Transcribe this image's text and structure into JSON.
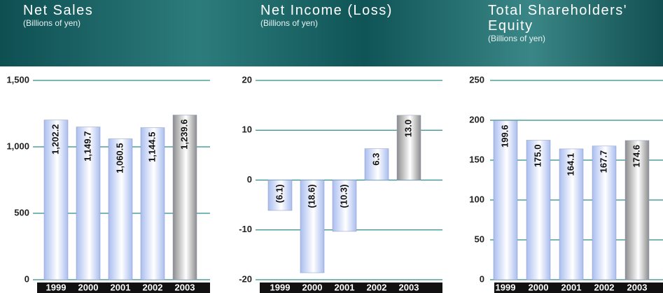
{
  "chart_data": [
    {
      "type": "bar",
      "title": "Net Sales",
      "subtitle": "(Billions of yen)",
      "categories": [
        "1999",
        "2000",
        "2001",
        "2002",
        "2003"
      ],
      "values": [
        1202.2,
        1149.7,
        1060.5,
        1144.5,
        1239.6
      ],
      "value_labels": [
        "1,202.2",
        "1,149.7",
        "1,060.5",
        "1,144.5",
        "1,239.6"
      ],
      "colors": [
        "#a9bdf0",
        "#a9bdf0",
        "#a9bdf0",
        "#a9bdf0",
        "#8c8c8c"
      ],
      "ylim": [
        0,
        1500
      ],
      "yticks": [
        0,
        500,
        {
          "value": 1000,
          "label": "1,000"
        },
        {
          "value": 1500,
          "label": "1,500"
        }
      ],
      "grid": true
    },
    {
      "type": "bar",
      "title": "Net Income (Loss)",
      "subtitle": "(Billions of yen)",
      "categories": [
        "1999",
        "2000",
        "2001",
        "2002",
        "2003"
      ],
      "values": [
        -6.1,
        -18.6,
        -10.3,
        6.3,
        13.0
      ],
      "value_labels": [
        "(6.1)",
        "(18.6)",
        "(10.3)",
        "6.3",
        "13.0"
      ],
      "colors": [
        "#a9bdf0",
        "#a9bdf0",
        "#a9bdf0",
        "#a9bdf0",
        "#8c8c8c"
      ],
      "ylim": [
        -20,
        20
      ],
      "yticks": [
        -20,
        -10,
        0,
        10,
        20
      ],
      "grid": true
    },
    {
      "type": "bar",
      "title": "Total Shareholders' Equity",
      "subtitle": "(Billions of yen)",
      "categories": [
        "1999",
        "2000",
        "2001",
        "2002",
        "2003"
      ],
      "values": [
        199.6,
        175.0,
        164.1,
        167.7,
        174.6
      ],
      "value_labels": [
        "199.6",
        "175.0",
        "164.1",
        "167.7",
        "174.6"
      ],
      "colors": [
        "#a9bdf0",
        "#a9bdf0",
        "#a9bdf0",
        "#a9bdf0",
        "#8c8c8c"
      ],
      "ylim": [
        0,
        250
      ],
      "yticks": [
        0,
        50,
        100,
        150,
        200,
        250
      ],
      "grid": true
    }
  ]
}
